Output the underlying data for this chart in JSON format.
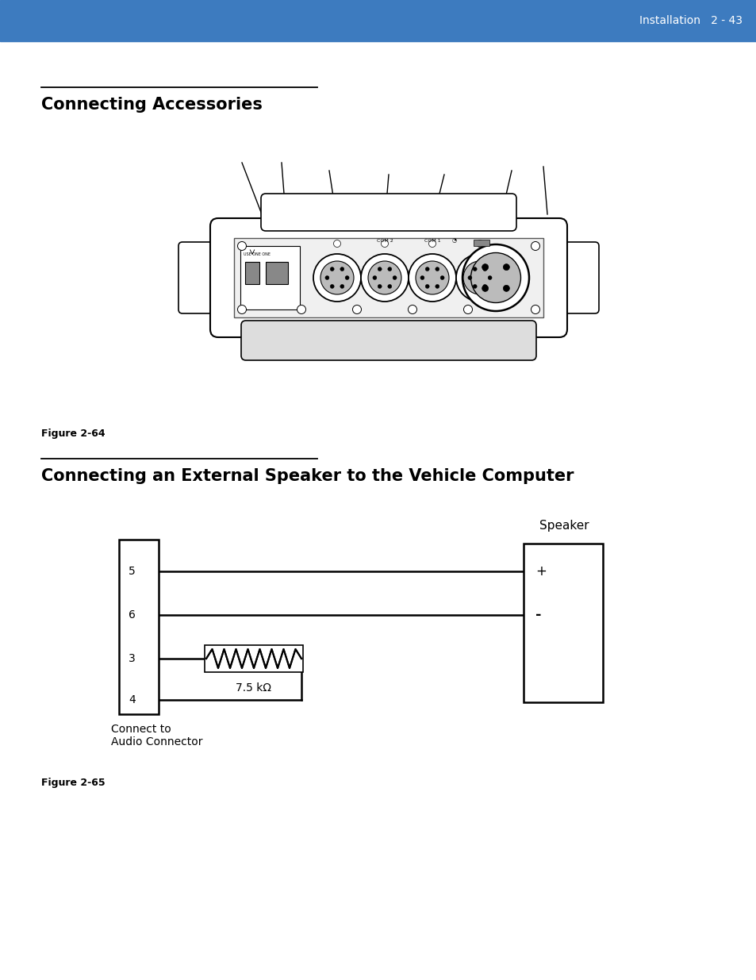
{
  "header_color": "#3d7bbf",
  "header_text": "Installation   2 - 43",
  "header_text_color": "#ffffff",
  "bg_color": "#ffffff",
  "section1_title": "Connecting Accessories",
  "section2_title": "Connecting an External Speaker to the Vehicle Computer",
  "figure1_caption": "Figure 2-64",
  "figure2_caption": "Figure 2-65",
  "resistor_label": "7.5 kΩ",
  "connect_label": "Connect to\nAudio Connector",
  "speaker_label": "Speaker",
  "pin_labels": [
    "5",
    "6",
    "3",
    "4"
  ],
  "plus_label": "+",
  "minus_label": "-"
}
